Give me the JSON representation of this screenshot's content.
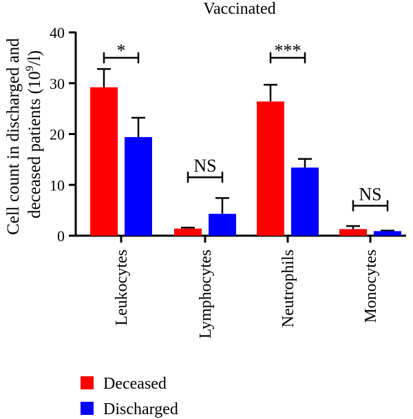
{
  "chart_data": {
    "type": "bar",
    "title": "Vaccinated",
    "ylabel_line1": "Cell count in discharged and",
    "ylabel_line2": "deceased patients (10",
    "ylabel_sup": "9",
    "ylabel_end": "/l)",
    "xlabel": "",
    "ylim": [
      0,
      40
    ],
    "yticks": [
      "0",
      "10",
      "20",
      "30",
      "40"
    ],
    "categories": [
      "Leukocytes",
      "Lymphocytes",
      "Neutrophils",
      "Monocytes"
    ],
    "series": [
      {
        "name": "Deceased",
        "color": "#ff0000",
        "values": [
          29.2,
          1.4,
          26.4,
          1.3
        ],
        "errors": [
          3.6,
          0.2,
          3.3,
          0.6
        ]
      },
      {
        "name": "Discharged",
        "color": "#0000ff",
        "values": [
          19.4,
          4.3,
          13.4,
          0.9
        ],
        "errors": [
          3.8,
          3.1,
          1.7,
          0.1
        ]
      }
    ],
    "significance": [
      {
        "label": "*",
        "level": 35
      },
      {
        "label": "NS",
        "level": 11.5
      },
      {
        "label": "***",
        "level": 35
      },
      {
        "label": "NS",
        "level": 5.9
      }
    ],
    "legend_position": "bottom-left",
    "grid": false
  }
}
